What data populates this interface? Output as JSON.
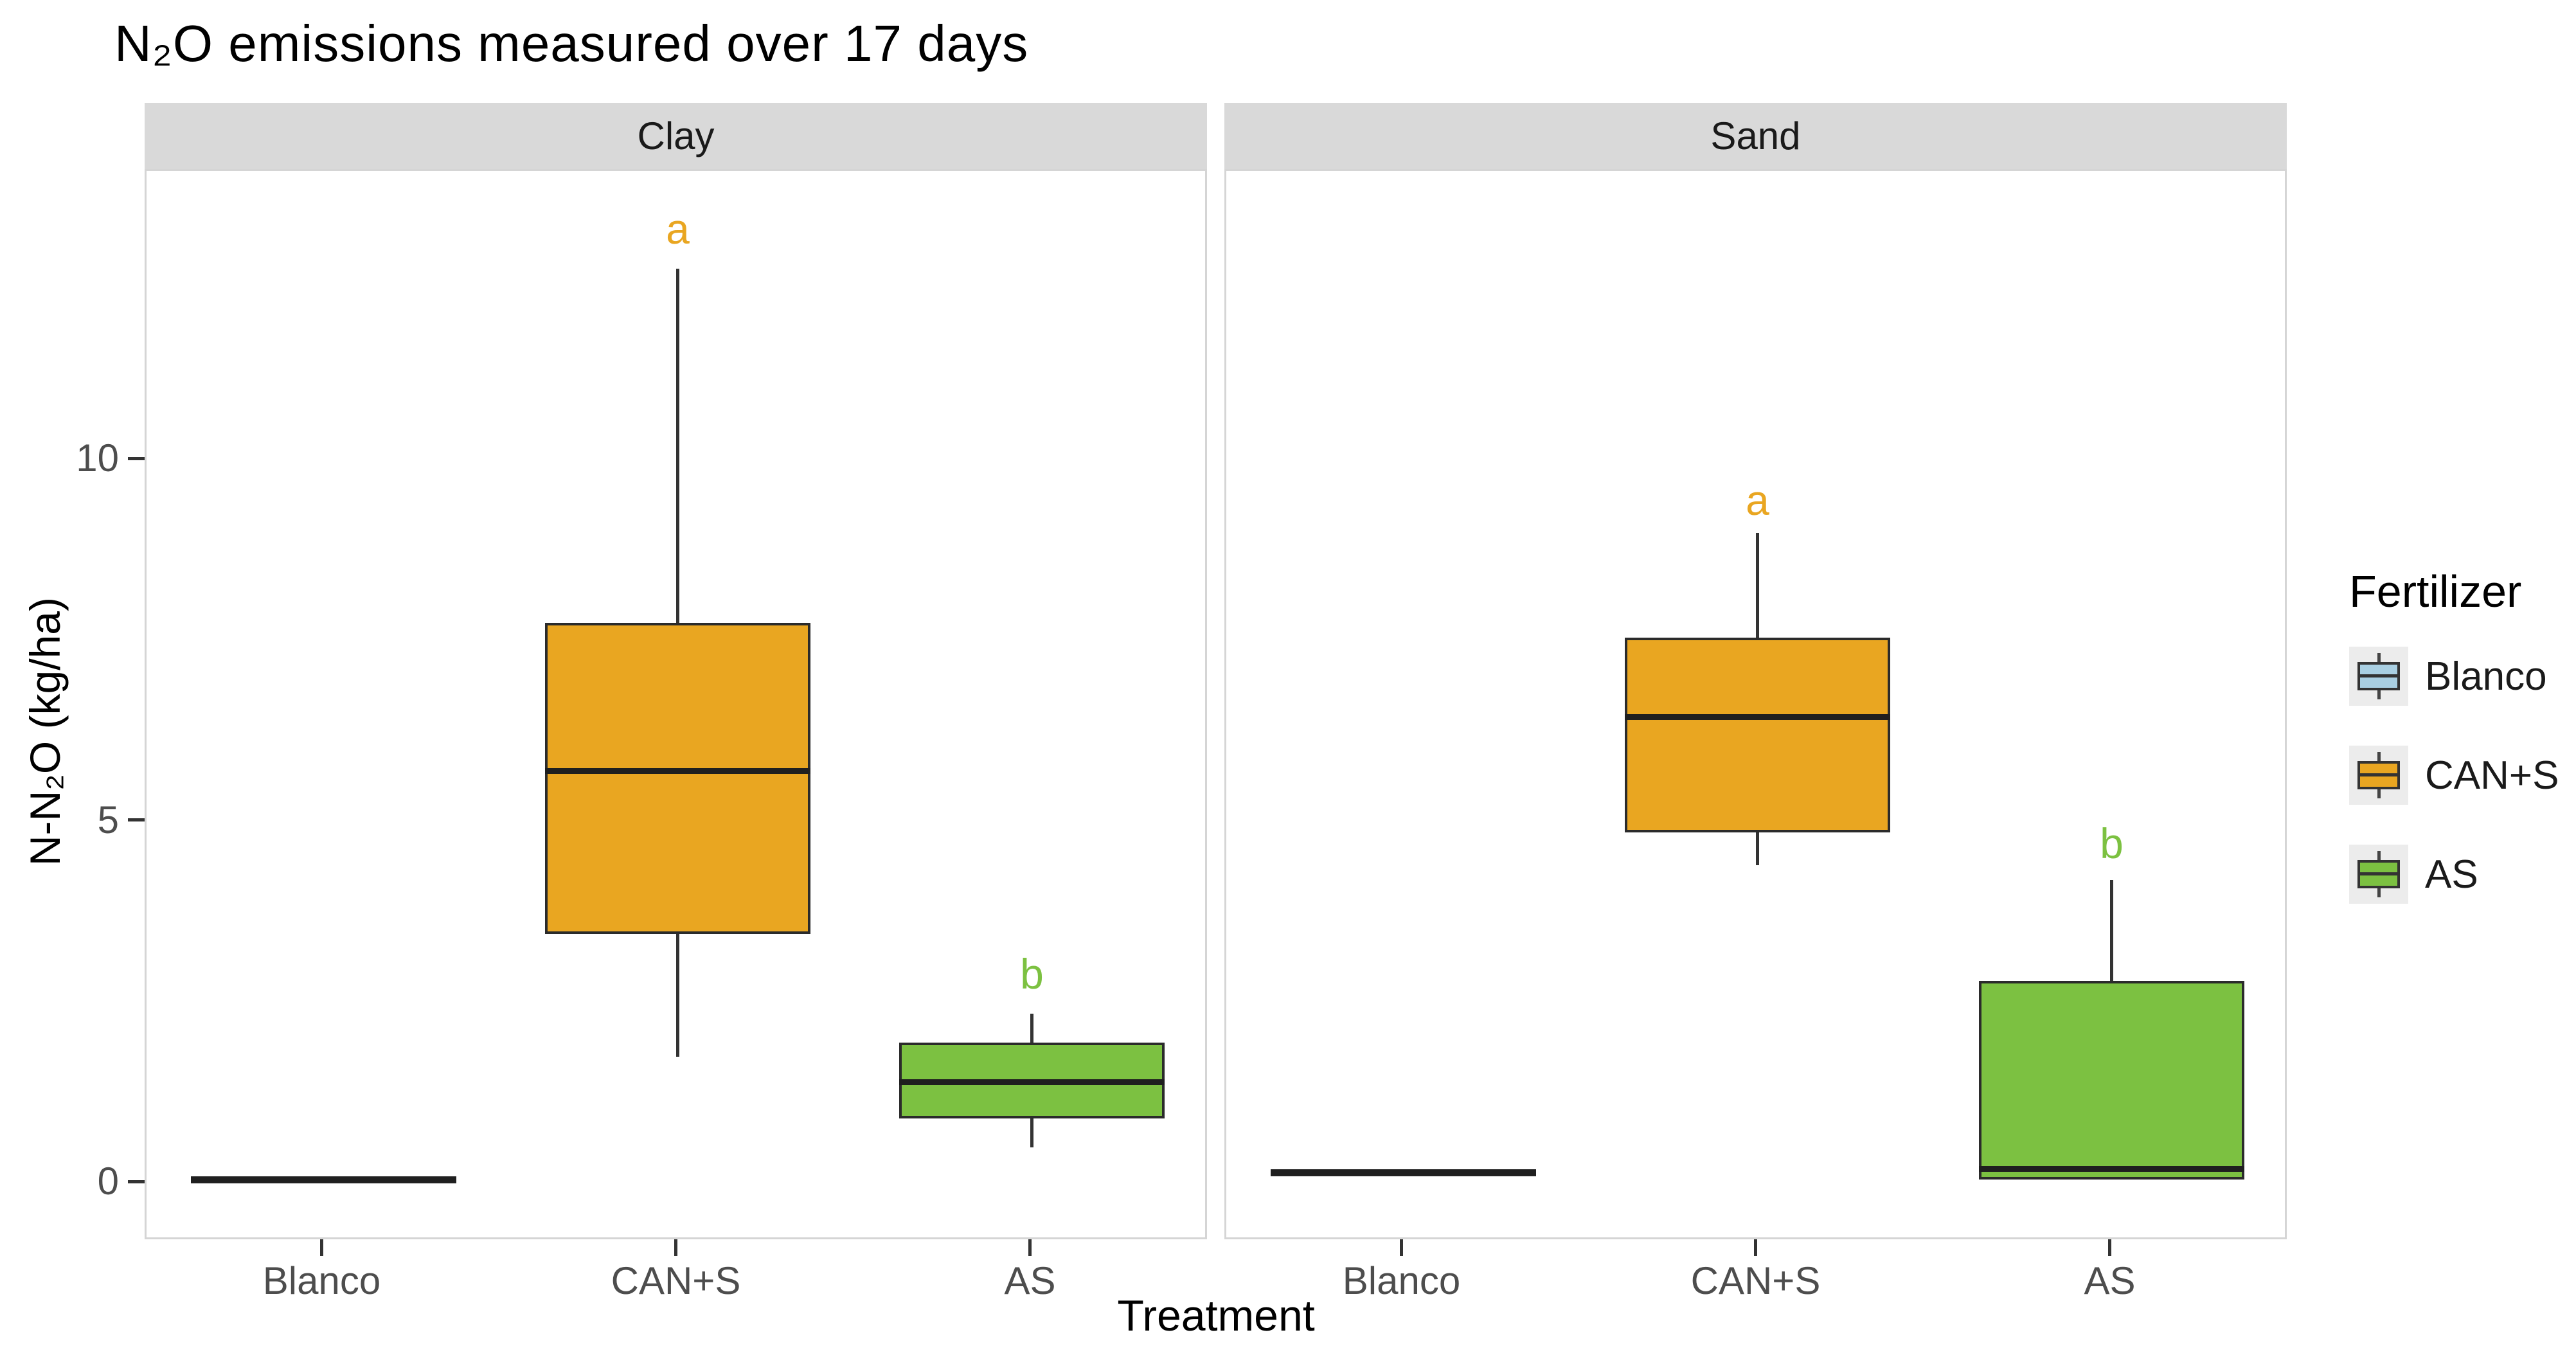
{
  "title": "N₂O emissions measured over 17 days",
  "legend": {
    "title": "Fertilizer",
    "items": [
      {
        "label": "Blanco",
        "color": "#A9CFE2"
      },
      {
        "label": "CAN+S",
        "color": "#E9A621"
      },
      {
        "label": "AS",
        "color": "#7CC141"
      }
    ]
  },
  "chart_data": {
    "type": "boxplot",
    "title": "N₂O emissions measured over 17 days",
    "ylabel": "N-N₂O (kg/ha)",
    "xlabel": "Treatment",
    "ylim": [
      -0.8,
      14.0
    ],
    "y_ticks": [
      0,
      5,
      10
    ],
    "categories": [
      "Blanco",
      "CAN+S",
      "AS"
    ],
    "grid": "none",
    "legend_position": "right",
    "palette": {
      "Blanco": "#A9CFE2",
      "CAN+S": "#E9A621",
      "AS": "#7CC141"
    },
    "panel_background": "#ffffff",
    "strip_background": "#d9d9d9",
    "facets": [
      {
        "name": "Clay",
        "groups": [
          {
            "treatment": "Blanco",
            "fertilizer": "Blanco",
            "min": 0.0,
            "q1": 0.0,
            "median": 0.05,
            "q3": 0.1,
            "max": 0.1,
            "letter": null,
            "letter_y": null
          },
          {
            "treatment": "CAN+S",
            "fertilizer": "CAN+S",
            "min": 1.75,
            "q1": 3.45,
            "median": 5.7,
            "q3": 7.75,
            "max": 12.65,
            "letter": "a",
            "letter_y": 13.2
          },
          {
            "treatment": "AS",
            "fertilizer": "AS",
            "min": 0.5,
            "q1": 0.9,
            "median": 1.4,
            "q3": 1.95,
            "max": 2.35,
            "letter": "b",
            "letter_y": 2.9
          }
        ]
      },
      {
        "name": "Sand",
        "groups": [
          {
            "treatment": "Blanco",
            "fertilizer": "Blanco",
            "min": 0.1,
            "q1": 0.1,
            "median": 0.15,
            "q3": 0.2,
            "max": 0.2,
            "letter": null,
            "letter_y": null
          },
          {
            "treatment": "CAN+S",
            "fertilizer": "CAN+S",
            "min": 4.4,
            "q1": 4.85,
            "median": 6.45,
            "q3": 7.55,
            "max": 9.0,
            "letter": "a",
            "letter_y": 9.45
          },
          {
            "treatment": "AS",
            "fertilizer": "AS",
            "min": 0.05,
            "q1": 0.05,
            "median": 0.2,
            "q3": 2.8,
            "max": 4.2,
            "letter": "b",
            "letter_y": 4.7
          }
        ]
      }
    ]
  }
}
